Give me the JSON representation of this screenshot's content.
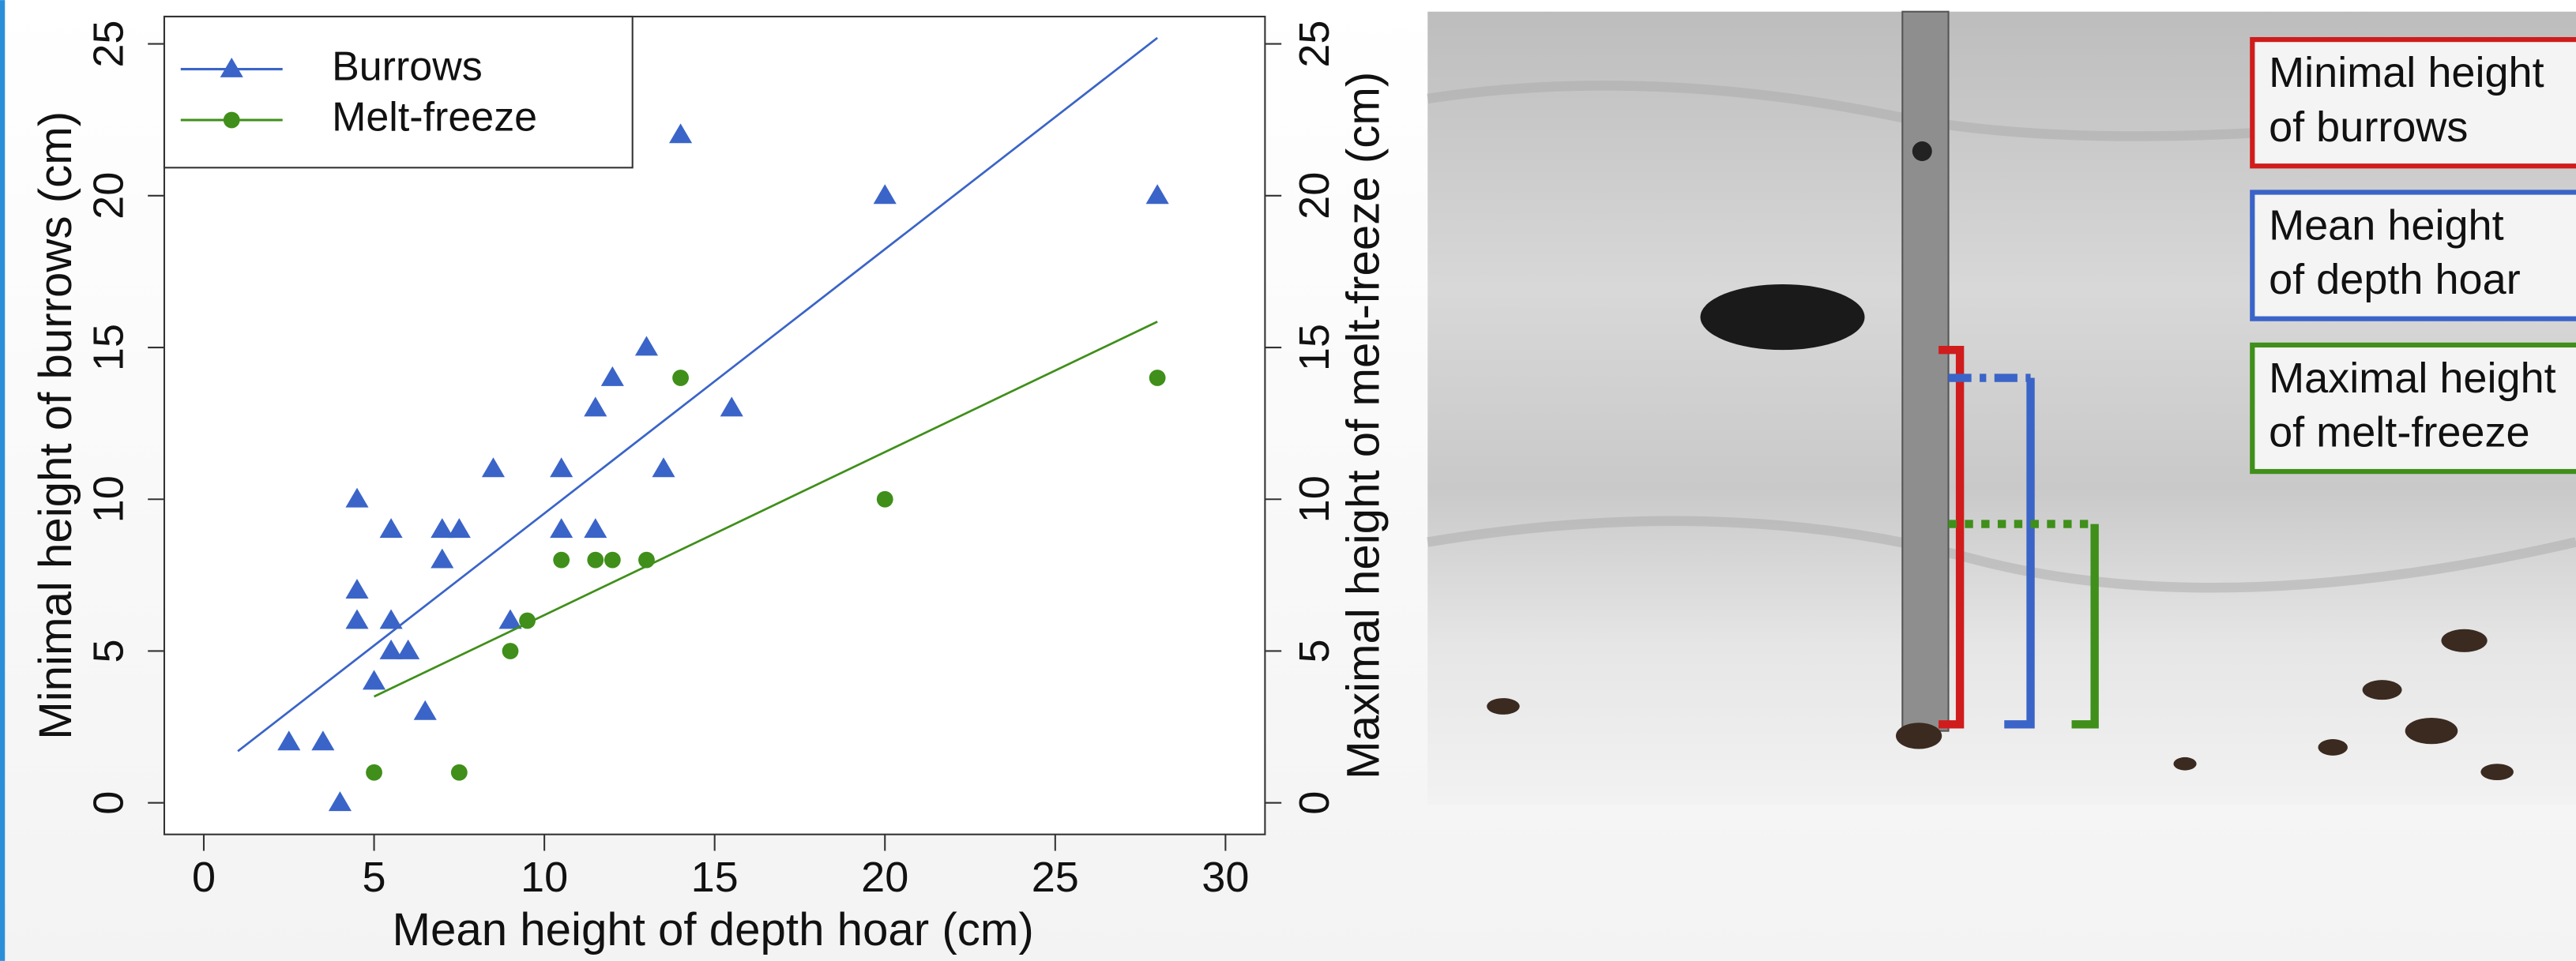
{
  "chart_data": {
    "type": "scatter",
    "xlabel": "Mean height of depth hoar (cm)",
    "ylabel": "Minimal height of burrows (cm)",
    "y2label": "Maximal height of melt-freeze (cm)",
    "xlim": [
      -1.16,
      31.16
    ],
    "ylim": [
      -1.04,
      25.9
    ],
    "y2lim": [
      -1.04,
      25.9
    ],
    "xticks": [
      0,
      5,
      10,
      15,
      20,
      25,
      30
    ],
    "yticks": [
      0,
      5,
      10,
      15,
      20,
      25
    ],
    "y2ticks": [
      0,
      5,
      10,
      15,
      20,
      25
    ],
    "legend": "upper left",
    "series": [
      {
        "name": "Burrows",
        "color": "#3a64c8",
        "marker": "triangle",
        "x": [
          2.5,
          3.5,
          4,
          4.5,
          4.5,
          4.5,
          5,
          5.5,
          5.5,
          5.5,
          6,
          6.5,
          7,
          7,
          7.5,
          8.5,
          9,
          10.5,
          10.5,
          11.5,
          11.5,
          12,
          13,
          13.5,
          14,
          15.5,
          20,
          28
        ],
        "values": [
          2,
          2,
          0,
          10,
          7,
          6,
          4,
          9,
          6,
          5,
          5,
          3,
          9,
          8,
          9,
          11,
          6,
          11,
          9,
          13,
          9,
          14,
          15,
          11,
          22,
          13,
          20,
          20
        ],
        "trend": {
          "x": [
            1,
            28
          ],
          "values": [
            1.7,
            25.2
          ]
        }
      },
      {
        "name": "Melt-freeze",
        "color": "#3f8f1a",
        "marker": "circle",
        "axis": "y2",
        "x": [
          5,
          7.5,
          9,
          9.5,
          10.5,
          11.5,
          12,
          13,
          14,
          20,
          28
        ],
        "values": [
          1,
          1,
          5,
          6,
          8,
          8,
          8,
          8,
          14,
          10,
          14
        ],
        "trend": {
          "x": [
            5,
            28
          ],
          "values": [
            3.5,
            15.85
          ]
        }
      }
    ]
  },
  "photo": {
    "labels": [
      {
        "color": "#d01c1c",
        "lines": [
          "Minimal height",
          "of burrows"
        ]
      },
      {
        "color": "#3a64c8",
        "lines": [
          "Mean height",
          "of depth hoar"
        ]
      },
      {
        "color": "#3f8f1a",
        "lines": [
          "Maximal height",
          "of melt-freeze"
        ]
      }
    ]
  }
}
